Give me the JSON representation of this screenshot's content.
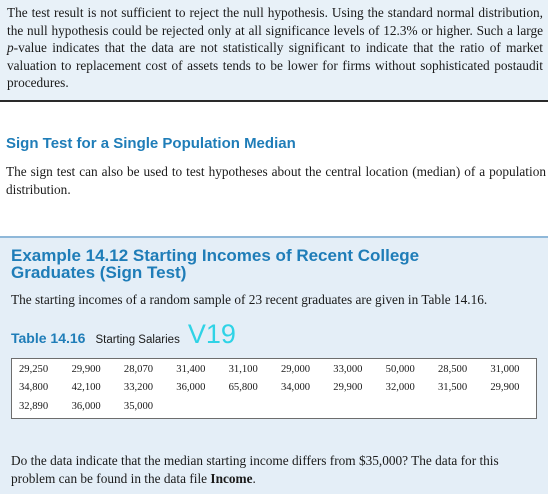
{
  "conclusion": {
    "before_italic": "The test result is not sufficient to reject the null hypothesis. Using the standard normal distribution, the null hypothesis could be rejected only at all significance levels of 12.3% or higher. Such a large ",
    "italic": "p",
    "after_italic": "-value indicates that the data are not statistically significant to indicate that the ratio of market valuation to replacement cost of assets tends to be lower for firms without sophisticated postaudit procedures."
  },
  "section": {
    "heading": "Sign Test for a Single Population Median",
    "body": "The sign test can also be used to test hypotheses about the central location (median) of a population distribution."
  },
  "example": {
    "title_line1": "Example 14.12 Starting Incomes of Recent College",
    "title_line2": "Graduates (Sign Test)",
    "intro": "The starting incomes of a random sample of 23 recent graduates are given in Table 14.16.",
    "table": {
      "number": "Table 14.16",
      "title": "Starting Salaries",
      "watermark": "V19",
      "rows": [
        [
          "29,250",
          "29,900",
          "28,070",
          "31,400",
          "31,100",
          "29,000",
          "33,000",
          "50,000",
          "28,500",
          "31,000"
        ],
        [
          "34,800",
          "42,100",
          "33,200",
          "36,000",
          "65,800",
          "34,000",
          "29,900",
          "32,000",
          "31,500",
          "29,900"
        ],
        [
          "32,890",
          "36,000",
          "35,000",
          "",
          "",
          "",
          "",
          "",
          "",
          ""
        ]
      ]
    },
    "question_before": "Do the data indicate that the median starting income differs from $35,000? The data for this problem can be found in the data file ",
    "question_file": "Income",
    "question_after": "."
  }
}
